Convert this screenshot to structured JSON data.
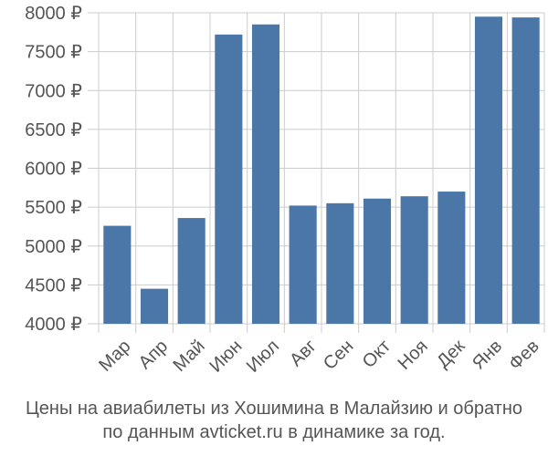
{
  "chart_data": {
    "type": "bar",
    "categories": [
      "Мар",
      "Апр",
      "Май",
      "Июн",
      "Июл",
      "Авг",
      "Сен",
      "Окт",
      "Ноя",
      "Дек",
      "Янв",
      "Фев"
    ],
    "values": [
      5260,
      4450,
      5360,
      7720,
      7850,
      5520,
      5550,
      5610,
      5640,
      5700,
      7950,
      7940
    ],
    "ylim": [
      4000,
      8000
    ],
    "yticks": [
      "4000 ₽",
      "4500 ₽",
      "5000 ₽",
      "5500 ₽",
      "6000 ₽",
      "6500 ₽",
      "7000 ₽",
      "7500 ₽",
      "8000 ₽"
    ],
    "ytick_values": [
      4000,
      4500,
      5000,
      5500,
      6000,
      6500,
      7000,
      7500,
      8000
    ],
    "grid": true,
    "bar_color": "#4a76a8",
    "grid_color": "#cccccc"
  },
  "caption": {
    "line1": "Цены на авиабилеты из Хошимина в Малайзию и обратно",
    "line2": "по данным avticket.ru в динамике за год."
  }
}
